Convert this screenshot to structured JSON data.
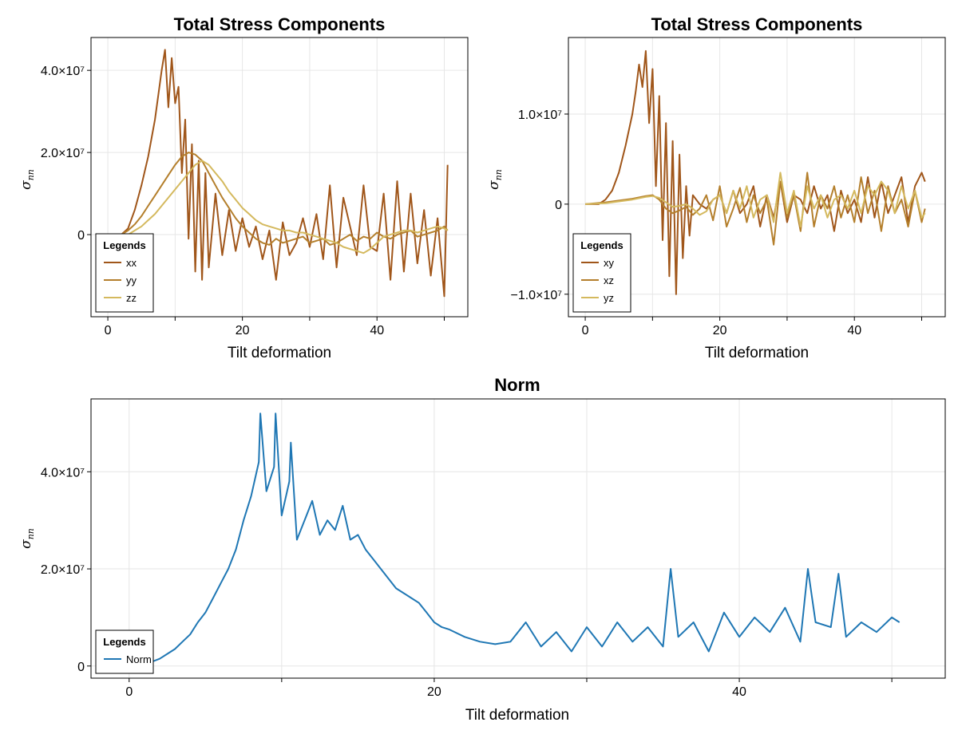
{
  "chart_data": [
    {
      "type": "line",
      "title": "Total Stress Components",
      "xlabel": "Tilt deformation",
      "ylabel": "σ_nn",
      "xlim": [
        -2.5,
        53.5
      ],
      "ylim": [
        -20000000,
        48000000
      ],
      "xticks": [
        {
          "v": 0,
          "label": "0"
        },
        {
          "v": 20,
          "label": "20"
        },
        {
          "v": 40,
          "label": "40"
        }
      ],
      "yticks": [
        {
          "v": 0,
          "label": "0"
        },
        {
          "v": 20000000,
          "label": "2.0×10⁷"
        },
        {
          "v": 40000000,
          "label": "4.0×10⁷"
        }
      ],
      "legend": {
        "title": "Legends",
        "position": "bottom-left"
      },
      "series": [
        {
          "name": "xx",
          "color": "#a0561a",
          "x": [
            0,
            2,
            3,
            4,
            5,
            6,
            7,
            7.5,
            8,
            8.5,
            9,
            9.5,
            10,
            10.5,
            11,
            11.5,
            12,
            12.5,
            13,
            13.5,
            14,
            14.5,
            15,
            16,
            17,
            18,
            19,
            20,
            21,
            22,
            23,
            24,
            25,
            26,
            27,
            28,
            29,
            30,
            31,
            32,
            33,
            34,
            35,
            36,
            37,
            38,
            39,
            40,
            41,
            42,
            43,
            44,
            45,
            46,
            47,
            48,
            49,
            50,
            50.5
          ],
          "values": [
            0,
            0,
            1500000,
            6000000,
            12000000,
            19000000,
            28000000,
            34000000,
            40000000,
            45000000,
            31000000,
            43000000,
            32000000,
            36000000,
            15000000,
            28000000,
            -1000000,
            22000000,
            -9000000,
            18000000,
            -11000000,
            15000000,
            -8000000,
            10000000,
            -5000000,
            6000000,
            -4000000,
            4000000,
            -3000000,
            2000000,
            -6000000,
            1000000,
            -11000000,
            3000000,
            -5000000,
            -2000000,
            4000000,
            -3000000,
            5000000,
            -6000000,
            12000000,
            -8000000,
            9000000,
            2000000,
            -5000000,
            12000000,
            -3000000,
            -4000000,
            10000000,
            -11000000,
            13000000,
            -9000000,
            10000000,
            -7000000,
            6000000,
            -10000000,
            4000000,
            -15000000,
            17000000
          ]
        },
        {
          "name": "yy",
          "color": "#b47f2c",
          "x": [
            0,
            2,
            3,
            4,
            5,
            6,
            7,
            8,
            9,
            10,
            11,
            12,
            13,
            14,
            15,
            16,
            17,
            18,
            19,
            20,
            21,
            22,
            23,
            24,
            25,
            26,
            27,
            28,
            29,
            30,
            31,
            32,
            33,
            34,
            35,
            36,
            37,
            38,
            39,
            40,
            41,
            42,
            43,
            44,
            45,
            46,
            47,
            48,
            49,
            50,
            50.5
          ],
          "values": [
            0,
            0,
            1000000,
            2500000,
            4500000,
            7000000,
            9500000,
            12000000,
            14500000,
            17000000,
            19000000,
            20000000,
            19500000,
            18000000,
            15000000,
            12000000,
            9000000,
            6500000,
            4000000,
            2000000,
            500000,
            -1000000,
            -2000000,
            -2500000,
            -1000000,
            -2000000,
            -1500000,
            -1000000,
            -500000,
            -2000000,
            -1500000,
            -1000000,
            -2500000,
            -2000000,
            -1000000,
            0,
            -1500000,
            -500000,
            -1000000,
            500000,
            -500000,
            -1000000,
            0,
            500000,
            1000000,
            -500000,
            0,
            500000,
            1000000,
            2000000,
            1000000
          ]
        },
        {
          "name": "zz",
          "color": "#d4b95e",
          "x": [
            0,
            3,
            4,
            5,
            6,
            7,
            8,
            9,
            10,
            11,
            12,
            13,
            14,
            15,
            16,
            17,
            18,
            19,
            20,
            21,
            22,
            23,
            24,
            25,
            26,
            27,
            28,
            29,
            30,
            31,
            32,
            33,
            34,
            35,
            36,
            37,
            38,
            39,
            40,
            41,
            42,
            43,
            44,
            45,
            46,
            47,
            48,
            49,
            50,
            50.5
          ],
          "values": [
            0,
            0,
            1000000,
            2000000,
            3500000,
            5000000,
            7000000,
            9000000,
            11000000,
            13000000,
            15000000,
            17000000,
            18000000,
            17000000,
            15000000,
            13000000,
            10500000,
            8500000,
            6500000,
            5000000,
            3500000,
            2500000,
            2000000,
            1500000,
            1000000,
            1000000,
            500000,
            500000,
            0,
            -500000,
            -1000000,
            -1500000,
            -2000000,
            -3000000,
            -3500000,
            -4000000,
            -4500000,
            -3500000,
            -2000000,
            -500000,
            0,
            500000,
            1000000,
            1000000,
            500000,
            1000000,
            1500000,
            2000000,
            1500000,
            1000000
          ]
        }
      ]
    },
    {
      "type": "line",
      "title": "Total Stress Components",
      "xlabel": "Tilt deformation",
      "ylabel": "σ_nn",
      "xlim": [
        -2.5,
        53.5
      ],
      "ylim": [
        -12500000,
        18500000
      ],
      "xticks": [
        {
          "v": 0,
          "label": "0"
        },
        {
          "v": 20,
          "label": "20"
        },
        {
          "v": 40,
          "label": "40"
        }
      ],
      "yticks": [
        {
          "v": -10000000,
          "label": "−1.0×10⁷"
        },
        {
          "v": 0,
          "label": "0"
        },
        {
          "v": 10000000,
          "label": "1.0×10⁷"
        }
      ],
      "legend": {
        "title": "Legends",
        "position": "bottom-left"
      },
      "series": [
        {
          "name": "xy",
          "color": "#a0561a",
          "x": [
            0,
            2,
            3,
            4,
            5,
            6,
            7,
            7.5,
            8,
            8.5,
            9,
            9.5,
            10,
            10.5,
            11,
            11.5,
            12,
            12.5,
            13,
            13.5,
            14,
            14.5,
            15,
            15.5,
            16,
            17,
            18,
            19,
            20,
            21,
            22,
            23,
            24,
            25,
            26,
            27,
            28,
            29,
            30,
            31,
            32,
            33,
            34,
            35,
            36,
            37,
            38,
            39,
            40,
            41,
            42,
            43,
            44,
            45,
            46,
            47,
            48,
            49,
            50,
            50.5
          ],
          "values": [
            0,
            0,
            500000,
            1500000,
            3500000,
            6500000,
            10000000,
            12500000,
            15500000,
            13000000,
            17000000,
            9000000,
            15000000,
            2000000,
            12000000,
            -4000000,
            9000000,
            -8000000,
            7000000,
            -10000000,
            5500000,
            -6000000,
            2000000,
            -3500000,
            1000000,
            0,
            -500000,
            500000,
            1000000,
            -1000000,
            1500000,
            -1000000,
            0,
            2000000,
            -2500000,
            1000000,
            -1500000,
            2500000,
            -2000000,
            1000000,
            500000,
            -1000000,
            2000000,
            -500000,
            1000000,
            -3000000,
            1500000,
            -1000000,
            500000,
            -2000000,
            3000000,
            -1500000,
            2500000,
            -1000000,
            1000000,
            3000000,
            -2000000,
            2000000,
            3500000,
            2500000
          ]
        },
        {
          "name": "xz",
          "color": "#b47f2c",
          "x": [
            0,
            3,
            5,
            7,
            9,
            10,
            11,
            12,
            13,
            14,
            15,
            16,
            17,
            18,
            19,
            20,
            21,
            22,
            23,
            24,
            25,
            26,
            27,
            28,
            29,
            30,
            31,
            32,
            33,
            34,
            35,
            36,
            37,
            38,
            39,
            40,
            41,
            42,
            43,
            44,
            45,
            46,
            47,
            48,
            49,
            50,
            50.5
          ],
          "values": [
            0,
            200000,
            400000,
            600000,
            900000,
            1000000,
            500000,
            -500000,
            -1000000,
            -700000,
            -300000,
            -1200000,
            -500000,
            1000000,
            -1800000,
            2000000,
            -2500000,
            -500000,
            1800000,
            -2000000,
            1000000,
            -1000000,
            500000,
            -4500000,
            2500000,
            -1500000,
            1000000,
            -3000000,
            3500000,
            -2500000,
            1000000,
            -500000,
            2000000,
            -1500000,
            1000000,
            -2000000,
            3000000,
            -1000000,
            1500000,
            -3000000,
            2000000,
            -1000000,
            500000,
            -2500000,
            1500000,
            -2000000,
            -500000
          ]
        },
        {
          "name": "yz",
          "color": "#d4b95e",
          "x": [
            0,
            3,
            5,
            7,
            9,
            10,
            11,
            12,
            13,
            14,
            15,
            16,
            17,
            18,
            19,
            20,
            21,
            22,
            23,
            24,
            25,
            26,
            27,
            28,
            29,
            30,
            31,
            32,
            33,
            34,
            35,
            36,
            37,
            38,
            39,
            40,
            41,
            42,
            43,
            44,
            45,
            46,
            47,
            48,
            49,
            50,
            50.5
          ],
          "values": [
            0,
            100000,
            300000,
            500000,
            800000,
            900000,
            700000,
            200000,
            -300000,
            -200000,
            0,
            -500000,
            -1200000,
            -800000,
            500000,
            1000000,
            -1000000,
            1500000,
            -500000,
            2000000,
            -1500000,
            500000,
            1000000,
            -2000000,
            3500000,
            -1000000,
            1500000,
            -2500000,
            2000000,
            -500000,
            1000000,
            -1500000,
            500000,
            1000000,
            -500000,
            1500000,
            -1000000,
            2000000,
            1000000,
            2500000,
            1500000,
            -1000000,
            2000000,
            -500000,
            1500000,
            -1500000,
            -1000000
          ]
        }
      ]
    },
    {
      "type": "line",
      "title": "Norm",
      "xlabel": "Tilt deformation",
      "ylabel": "σ_nn",
      "xlim": [
        -2.5,
        53.5
      ],
      "ylim": [
        -2500000,
        55000000
      ],
      "xticks": [
        {
          "v": 0,
          "label": "0"
        },
        {
          "v": 20,
          "label": "20"
        },
        {
          "v": 40,
          "label": "40"
        }
      ],
      "yticks": [
        {
          "v": 0,
          "label": "0"
        },
        {
          "v": 20000000,
          "label": "2.0×10⁷"
        },
        {
          "v": 40000000,
          "label": "4.0×10⁷"
        }
      ],
      "legend": {
        "title": "Legends",
        "position": "bottom-left"
      },
      "series": [
        {
          "name": "Norm",
          "color": "#1f77b4",
          "x": [
            0,
            1,
            2,
            2.5,
            3,
            3.5,
            4,
            4.5,
            5,
            5.5,
            6,
            6.5,
            7,
            7.5,
            8,
            8.5,
            8.6,
            9,
            9.5,
            9.6,
            10,
            10.5,
            10.6,
            11,
            11.5,
            12,
            12.5,
            13,
            13.5,
            14,
            14.5,
            15,
            15.5,
            16,
            16.5,
            17,
            17.5,
            18,
            18.5,
            19,
            19.5,
            20,
            20.5,
            21,
            22,
            23,
            24,
            25,
            26,
            27,
            28,
            29,
            30,
            31,
            32,
            33,
            34,
            35,
            35.5,
            36,
            37,
            38,
            39,
            40,
            41,
            42,
            43,
            44,
            44.5,
            45,
            46,
            46.5,
            47,
            48,
            49,
            50,
            50.5
          ],
          "values": [
            0,
            300000,
            1500000,
            2500000,
            3500000,
            5000000,
            6500000,
            9000000,
            11000000,
            14000000,
            17000000,
            20000000,
            24000000,
            30000000,
            35000000,
            42000000,
            52000000,
            36000000,
            41000000,
            52000000,
            31000000,
            38000000,
            46000000,
            26000000,
            30000000,
            34000000,
            27000000,
            30000000,
            28000000,
            33000000,
            26000000,
            27000000,
            24000000,
            22000000,
            20000000,
            18000000,
            16000000,
            15000000,
            14000000,
            13000000,
            11000000,
            9000000,
            8000000,
            7500000,
            6000000,
            5000000,
            4500000,
            5000000,
            9000000,
            4000000,
            7000000,
            3000000,
            8000000,
            4000000,
            9000000,
            5000000,
            8000000,
            4000000,
            20000000,
            6000000,
            9000000,
            3000000,
            11000000,
            6000000,
            10000000,
            7000000,
            12000000,
            5000000,
            20000000,
            9000000,
            8000000,
            19000000,
            6000000,
            9000000,
            7000000,
            10000000,
            9000000
          ]
        }
      ]
    }
  ]
}
